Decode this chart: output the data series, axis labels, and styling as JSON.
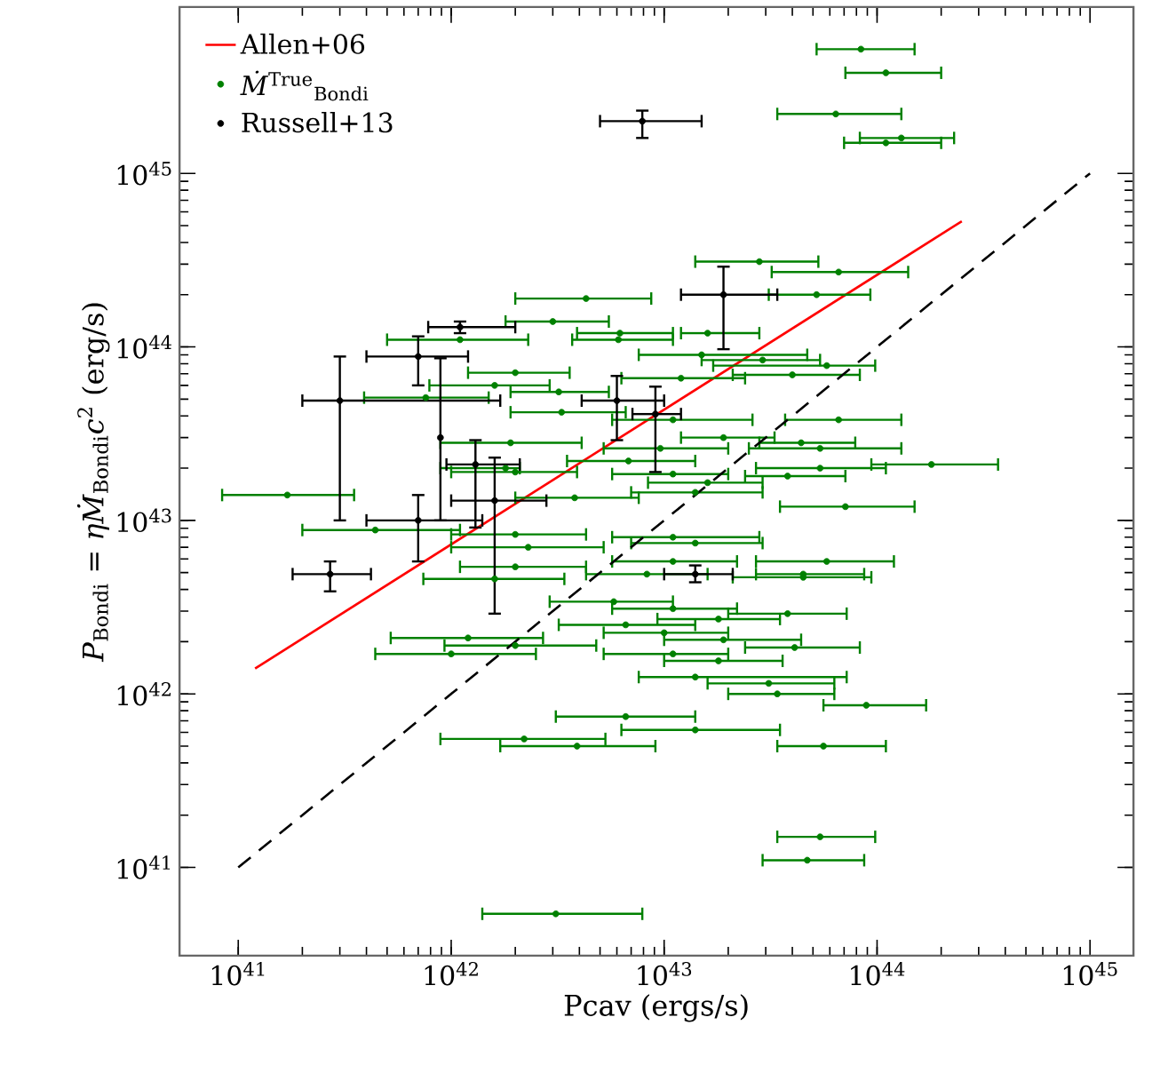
{
  "chart_data": {
    "type": "scatter",
    "xlabel": "Pcav (ergs/s)",
    "ylabel": "*P*$_{Bondi}$ = *ηṀ*$_{Bondi}$*c*$^{2}$ (erg/s)",
    "log": "xy",
    "xlim": [
      5.3e+40,
      1.6e+45
    ],
    "ylim": [
      3.1e+40,
      9.1e+45
    ],
    "xticks": [
      {
        "value": 1e+41,
        "label": "10$^{41}$"
      },
      {
        "value": 1e+42,
        "label": "10$^{42}$"
      },
      {
        "value": 1e+43,
        "label": "10$^{43}$"
      },
      {
        "value": 1e+44,
        "label": "10$^{44}$"
      },
      {
        "value": 1e+45,
        "label": "10$^{45}$"
      }
    ],
    "yticks": [
      {
        "value": 1e+41,
        "label": "10$^{41}$"
      },
      {
        "value": 1e+42,
        "label": "10$^{42}$"
      },
      {
        "value": 1e+43,
        "label": "10$^{43}$"
      },
      {
        "value": 1e+44,
        "label": "10$^{44}$"
      },
      {
        "value": 1e+45,
        "label": "10$^{45}$"
      }
    ],
    "grid": false,
    "legend": "top left",
    "series": [
      {
        "name": "Allen+06",
        "type": "line",
        "color": "#ff0000",
        "line_style": "solid",
        "marker": "none",
        "x": [
          1.2e+41,
          2.5e+44
        ],
        "values": [
          1.4e+42,
          5.3e+44
        ]
      },
      {
        "name": "*Ṁ*$^{True}$$_{Bondi}$",
        "type": "scatter",
        "color": "#008000",
        "marker": "circle",
        "x": [
          8.4e+43,
          1.1e+44,
          6.4e+43,
          1.3e+44,
          1.1e+44,
          2.8e+43,
          6.6e+43,
          5.2e+43,
          4.3e+42,
          3e+42,
          1.6e+43,
          6.2e+42,
          6.1e+42,
          1.1e+42,
          2e+42,
          1.6e+42,
          3.2e+42,
          7.6e+41,
          3.3e+42,
          1.5e+43,
          2.9e+43,
          5.8e+43,
          4e+43,
          1.2e+43,
          1.9e+42,
          1.8e+42,
          6.8e+42,
          6.6e+43,
          1.1e+43,
          1.9e+43,
          4.4e+43,
          5.4e+43,
          9.6e+42,
          1.8e+44,
          5.4e+43,
          3.8e+43,
          1.6e+43,
          1.1e+43,
          1.7e+41,
          2e+42,
          3.8e+42,
          1.4e+43,
          7.1e+43,
          4.4e+41,
          2e+42,
          2.3e+42,
          1.1e+43,
          1.4e+43,
          2e+42,
          1.6e+42,
          8.3e+42,
          1.1e+43,
          5.8e+43,
          4.5e+43,
          4.5e+43,
          6.6e+42,
          5.8e+42,
          1.1e+43,
          1.8e+43,
          3.8e+43,
          1e+43,
          1.9e+43,
          4.1e+43,
          1.8e+43,
          1.1e+43,
          1.4e+43,
          3.1e+43,
          3.4e+43,
          8.9e+43,
          1.4e+43,
          5.6e+43,
          5.4e+43,
          4.7e+43,
          1.2e+42,
          2e+42,
          1e+42,
          6.6e+42,
          2.2e+42,
          3.9e+42,
          3.1e+42
        ],
        "values": [
          5.2e+45,
          3.8e+45,
          2.2e+45,
          1.6e+45,
          1.5e+45,
          3.1e+44,
          2.7e+44,
          2e+44,
          1.9e+44,
          1.4e+44,
          1.2e+44,
          1.2e+44,
          1.1e+44,
          1.1e+44,
          7.1e+43,
          6e+43,
          5.5e+43,
          5.1e+43,
          4.2e+43,
          9e+43,
          8.4e+43,
          7.8e+43,
          6.9e+43,
          6.6e+43,
          2.8e+43,
          2e+43,
          2.2e+43,
          3.8e+43,
          3.8e+43,
          3e+43,
          2.8e+43,
          2.6e+43,
          2.6e+43,
          2.1e+43,
          2e+43,
          1.8e+43,
          1.65e+43,
          1.85e+43,
          1.4e+43,
          1.9e+43,
          1.35e+43,
          1.45e+43,
          1.2e+43,
          8.8e+42,
          8.3e+42,
          7e+42,
          8e+42,
          7.4e+42,
          5.4e+42,
          4.6e+42,
          4.9e+42,
          5.8e+42,
          5.8e+42,
          4.9e+42,
          4.7e+42,
          2.5e+42,
          3.4e+42,
          3.1e+42,
          2.7e+42,
          2.9e+42,
          2.25e+42,
          2.05e+42,
          1.85e+42,
          1.55e+42,
          1.7e+42,
          1.25e+42,
          1.15e+42,
          1e+42,
          8.6e+41,
          6.2e+41,
          5e+41,
          1.5e+41,
          1.1e+41,
          2.1e+42,
          1.9e+42,
          1.7e+42,
          7.4e+41,
          5.5e+41,
          5e+41,
          5.4e+40
        ],
        "xerrors": [
          [
            5.2e+43,
            1.5e+44
          ],
          [
            7.1e+43,
            2e+44
          ],
          [
            3.4e+43,
            1.3e+44
          ],
          [
            8.3e+43,
            2.3e+44
          ],
          [
            7e+43,
            2e+44
          ],
          [
            1.4e+43,
            5.3e+43
          ],
          [
            3.2e+43,
            1.4e+44
          ],
          [
            3.1e+43,
            9.3e+43
          ],
          [
            2e+42,
            8.7e+42
          ],
          [
            1.8e+42,
            5.5e+42
          ],
          [
            1.2e+43,
            2.8e+43
          ],
          [
            3.9e+42,
            1.1e+43
          ],
          [
            3.7e+42,
            1.1e+43
          ],
          [
            5e+41,
            2.3e+42
          ],
          [
            1.2e+42,
            3.6e+42
          ],
          [
            7.9e+41,
            2.9e+42
          ],
          [
            1.9e+42,
            5.5e+42
          ],
          [
            3.9e+41,
            1.5e+42
          ],
          [
            1.9e+42,
            6.6e+42
          ],
          [
            7.6e+42,
            4.7e+43
          ],
          [
            1.5e+43,
            5.4e+43
          ],
          [
            1.7e+43,
            9.8e+43
          ],
          [
            2.1e+43,
            8.3e+43
          ],
          [
            6.3e+42,
            2.4e+43
          ],
          [
            8.9e+41,
            4.1e+42
          ],
          [
            8.9e+41,
            2.1e+42
          ],
          [
            3.5e+42,
            1.4e+43
          ],
          [
            3.7e+43,
            1.3e+44
          ],
          [
            5.7e+42,
            2.6e+43
          ],
          [
            1.2e+43,
            3.3e+43
          ],
          [
            2.8e+43,
            7.9e+43
          ],
          [
            2.5e+43,
            1.3e+44
          ],
          [
            5.2e+42,
            2e+43
          ],
          [
            9.4e+43,
            3.7e+44
          ],
          [
            2.7e+43,
            1.1e+44
          ],
          [
            2.4e+43,
            7.1e+43
          ],
          [
            8.4e+42,
            2.9e+43
          ],
          [
            5.7e+42,
            2e+43
          ],
          [
            8.4e+40,
            3.5e+41
          ],
          [
            1e+42,
            3.9e+42
          ],
          [
            2e+42,
            7.6e+42
          ],
          [
            7e+42,
            2.9e+43
          ],
          [
            3.5e+43,
            1.5e+44
          ],
          [
            2e+41,
            1.1e+42
          ],
          [
            1e+42,
            4.3e+42
          ],
          [
            1e+42,
            5.2e+42
          ],
          [
            5.7e+42,
            2.8e+43
          ],
          [
            7e+42,
            2.9e+43
          ],
          [
            1.1e+42,
            4.3e+42
          ],
          [
            7.4e+41,
            3.4e+42
          ],
          [
            4.3e+42,
            1.6e+43
          ],
          [
            5.7e+42,
            2.2e+43
          ],
          [
            2.7e+43,
            1.2e+44
          ],
          [
            2.7e+43,
            8.7e+43
          ],
          [
            2.1e+43,
            9.4e+43
          ],
          [
            3.2e+42,
            1.4e+43
          ],
          [
            2.9e+42,
            1.1e+43
          ],
          [
            5.7e+42,
            2.2e+43
          ],
          [
            9.3e+42,
            3.5e+43
          ],
          [
            2e+43,
            7.2e+43
          ],
          [
            5.2e+42,
            2e+43
          ],
          [
            1e+43,
            4.4e+43
          ],
          [
            2.4e+43,
            8.3e+43
          ],
          [
            1e+43,
            3.6e+43
          ],
          [
            5.2e+42,
            2e+43
          ],
          [
            7.6e+42,
            7.2e+43
          ],
          [
            1.6e+43,
            6.3e+43
          ],
          [
            2e+43,
            6.3e+43
          ],
          [
            5.6e+43,
            1.7e+44
          ],
          [
            6.3e+42,
            3.5e+43
          ],
          [
            3.4e+43,
            1.1e+44
          ],
          [
            3.4e+43,
            9.8e+43
          ],
          [
            2.9e+43,
            8.7e+43
          ],
          [
            5.2e+41,
            2.7e+42
          ],
          [
            9.3e+41,
            4.8e+42
          ],
          [
            4.4e+41,
            2.5e+42
          ],
          [
            3.1e+42,
            1.4e+43
          ],
          [
            8.9e+41,
            5.3e+42
          ],
          [
            1.7e+42,
            9.1e+42
          ],
          [
            1.4e+42,
            7.9e+42
          ]
        ]
      },
      {
        "name": "Russell+13",
        "type": "scatter",
        "color": "#000000",
        "marker": "none",
        "x": [
          7.9e+42,
          1.1e+42,
          1.9e+43,
          3e+41,
          7e+41,
          7e+41,
          1.3e+42,
          1.6e+42,
          8.9e+41,
          6e+42,
          9.1e+42,
          1.4e+43,
          2.7e+41
        ],
        "values": [
          2e+45,
          1.3e+44,
          2e+44,
          4.9e+43,
          8.8e+43,
          1e+43,
          2.1e+43,
          1.3e+43,
          3e+43,
          4.9e+43,
          4.1e+43,
          4.9e+42,
          4.9e+42
        ],
        "xerrors": [
          [
            5e+42,
            1.5e+43
          ],
          [
            7.8e+41,
            2e+42
          ],
          [
            1.2e+43,
            3.4e+43
          ],
          [
            2e+41,
            1.7e+42
          ],
          [
            4e+41,
            1.2e+42
          ],
          [
            4e+41,
            1.4e+42
          ],
          [
            9.5e+41,
            2.1e+42
          ],
          [
            1e+42,
            2.8e+42
          ],
          null,
          [
            4.1e+42,
            1e+43
          ],
          [
            7.1e+42,
            1.2e+43
          ],
          [
            1e+43,
            2.1e+43
          ],
          [
            1.8e+41,
            4.2e+41
          ]
        ],
        "errors": [
          [
            1.6e+45,
            2.3e+45
          ],
          [
            1.2e+44,
            1.4e+44
          ],
          [
            9.7e+43,
            2.9e+44
          ],
          [
            1e+43,
            8.8e+43
          ],
          [
            6e+43,
            1.15e+44
          ],
          [
            5.8e+42,
            1.4e+43
          ],
          [
            9.1e+42,
            2.9e+43
          ],
          [
            2.9e+42,
            2.3e+43
          ],
          [
            1e+43,
            8.6e+43
          ],
          [
            2.9e+43,
            6.8e+43
          ],
          [
            1.9e+43,
            5.9e+43
          ],
          [
            4.4e+42,
            5.5e+42
          ],
          [
            3.9e+42,
            5.8e+42
          ]
        ]
      },
      {
        "type": "line",
        "color": "#000000",
        "line_style": "dashed",
        "marker": "none",
        "x": [
          1e+41,
          1e+45
        ],
        "values": [
          1e+41,
          1e+45
        ]
      }
    ]
  }
}
